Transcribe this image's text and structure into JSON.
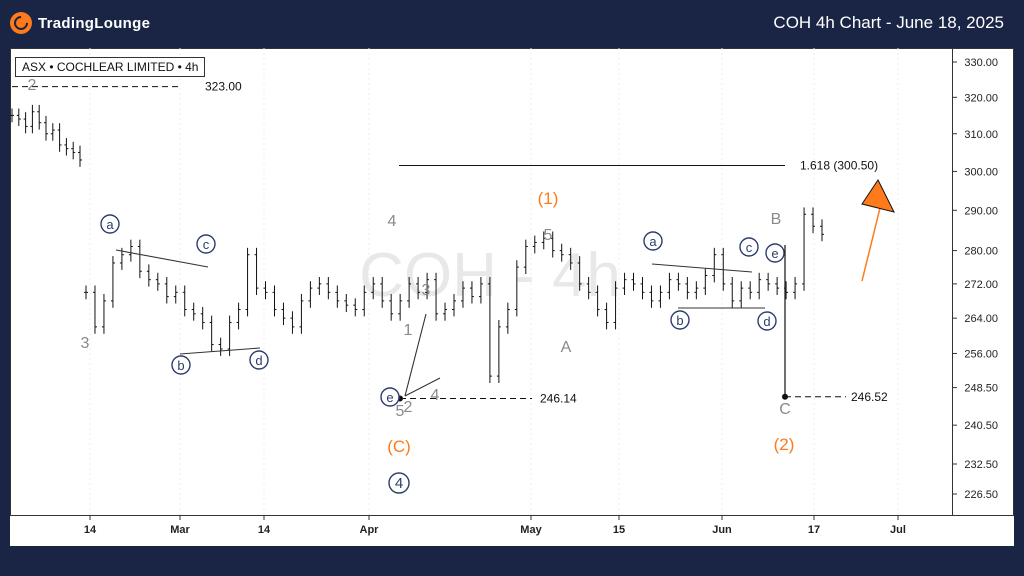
{
  "header": {
    "brand": "TradingLounge",
    "title": "COH 4h Chart - June 18, 2025"
  },
  "ticker": "ASX • COCHLEAR LIMITED • 4h",
  "watermark": "COH - 4h",
  "colors": {
    "header_bg": "#1a2546",
    "accent": "#ff7a1a",
    "wave_gray": "#8a8a8a",
    "wave_navy": "#2c3e6b",
    "candles": "#111111"
  },
  "chart_data": {
    "type": "ohlc",
    "y_ticks": [
      "330.00",
      "320.00",
      "310.00",
      "300.00",
      "290.00",
      "280.00",
      "272.00",
      "264.00",
      "256.00",
      "248.50",
      "240.50",
      "232.50",
      "226.50"
    ],
    "x_ticks": [
      "14",
      "Mar",
      "14",
      "Apr",
      "May",
      "15",
      "Jun",
      "17",
      "Jul"
    ],
    "y_scale": "log",
    "ylim": [
      222,
      334
    ],
    "price_levels": [
      {
        "label": "323.00",
        "value": 323.0
      },
      {
        "label": "246.14",
        "value": 246.14
      },
      {
        "label": "246.52",
        "value": 246.52
      },
      {
        "label": "1.618 (300.50)",
        "value": 300.5
      }
    ],
    "series": [
      {
        "segment": "early-feb",
        "closes": [
          315,
          314,
          312,
          316,
          313,
          310,
          311,
          307,
          306,
          305,
          303
        ]
      },
      {
        "segment": "feb-jun",
        "closes": [
          270,
          262,
          268,
          277,
          279,
          281,
          275,
          273,
          272,
          269,
          270,
          266,
          265,
          263,
          258,
          257,
          263,
          266,
          279,
          271,
          270,
          266,
          264,
          262,
          268,
          271,
          272,
          270,
          268,
          267,
          266,
          270,
          272,
          268,
          265,
          268,
          272,
          270,
          273,
          265,
          266,
          268,
          271,
          269,
          272,
          251,
          262,
          266,
          276,
          281,
          282,
          283,
          280,
          279,
          277,
          272,
          270,
          266,
          263,
          271,
          273,
          272,
          270,
          268,
          270,
          273,
          272,
          270,
          271,
          274,
          279,
          272,
          268,
          271,
          270,
          273,
          272,
          271,
          270,
          272,
          289,
          286,
          284
        ]
      }
    ],
    "wave_labels": [
      {
        "text": "2",
        "style": "gray"
      },
      {
        "text": "3",
        "style": "gray"
      },
      {
        "text": "a",
        "style": "navy-circle"
      },
      {
        "text": "b",
        "style": "navy-circle"
      },
      {
        "text": "c",
        "style": "navy-circle"
      },
      {
        "text": "d",
        "style": "navy-circle"
      },
      {
        "text": "e",
        "style": "navy-circle"
      },
      {
        "text": "4",
        "style": "gray"
      },
      {
        "text": "5",
        "style": "gray"
      },
      {
        "text": "1",
        "style": "gray"
      },
      {
        "text": "2",
        "style": "gray"
      },
      {
        "text": "3",
        "style": "gray"
      },
      {
        "text": "4",
        "style": "gray"
      },
      {
        "text": "(C)",
        "style": "orange"
      },
      {
        "text": "4",
        "style": "navy-circle-large"
      },
      {
        "text": "(1)",
        "style": "orange"
      },
      {
        "text": "5",
        "style": "gray"
      },
      {
        "text": "A",
        "style": "gray"
      },
      {
        "text": "a",
        "style": "navy-circle"
      },
      {
        "text": "b",
        "style": "navy-circle"
      },
      {
        "text": "c",
        "style": "navy-circle"
      },
      {
        "text": "d",
        "style": "navy-circle"
      },
      {
        "text": "e",
        "style": "navy-circle"
      },
      {
        "text": "B",
        "style": "gray"
      },
      {
        "text": "C",
        "style": "gray"
      },
      {
        "text": "(2)",
        "style": "orange"
      }
    ]
  }
}
